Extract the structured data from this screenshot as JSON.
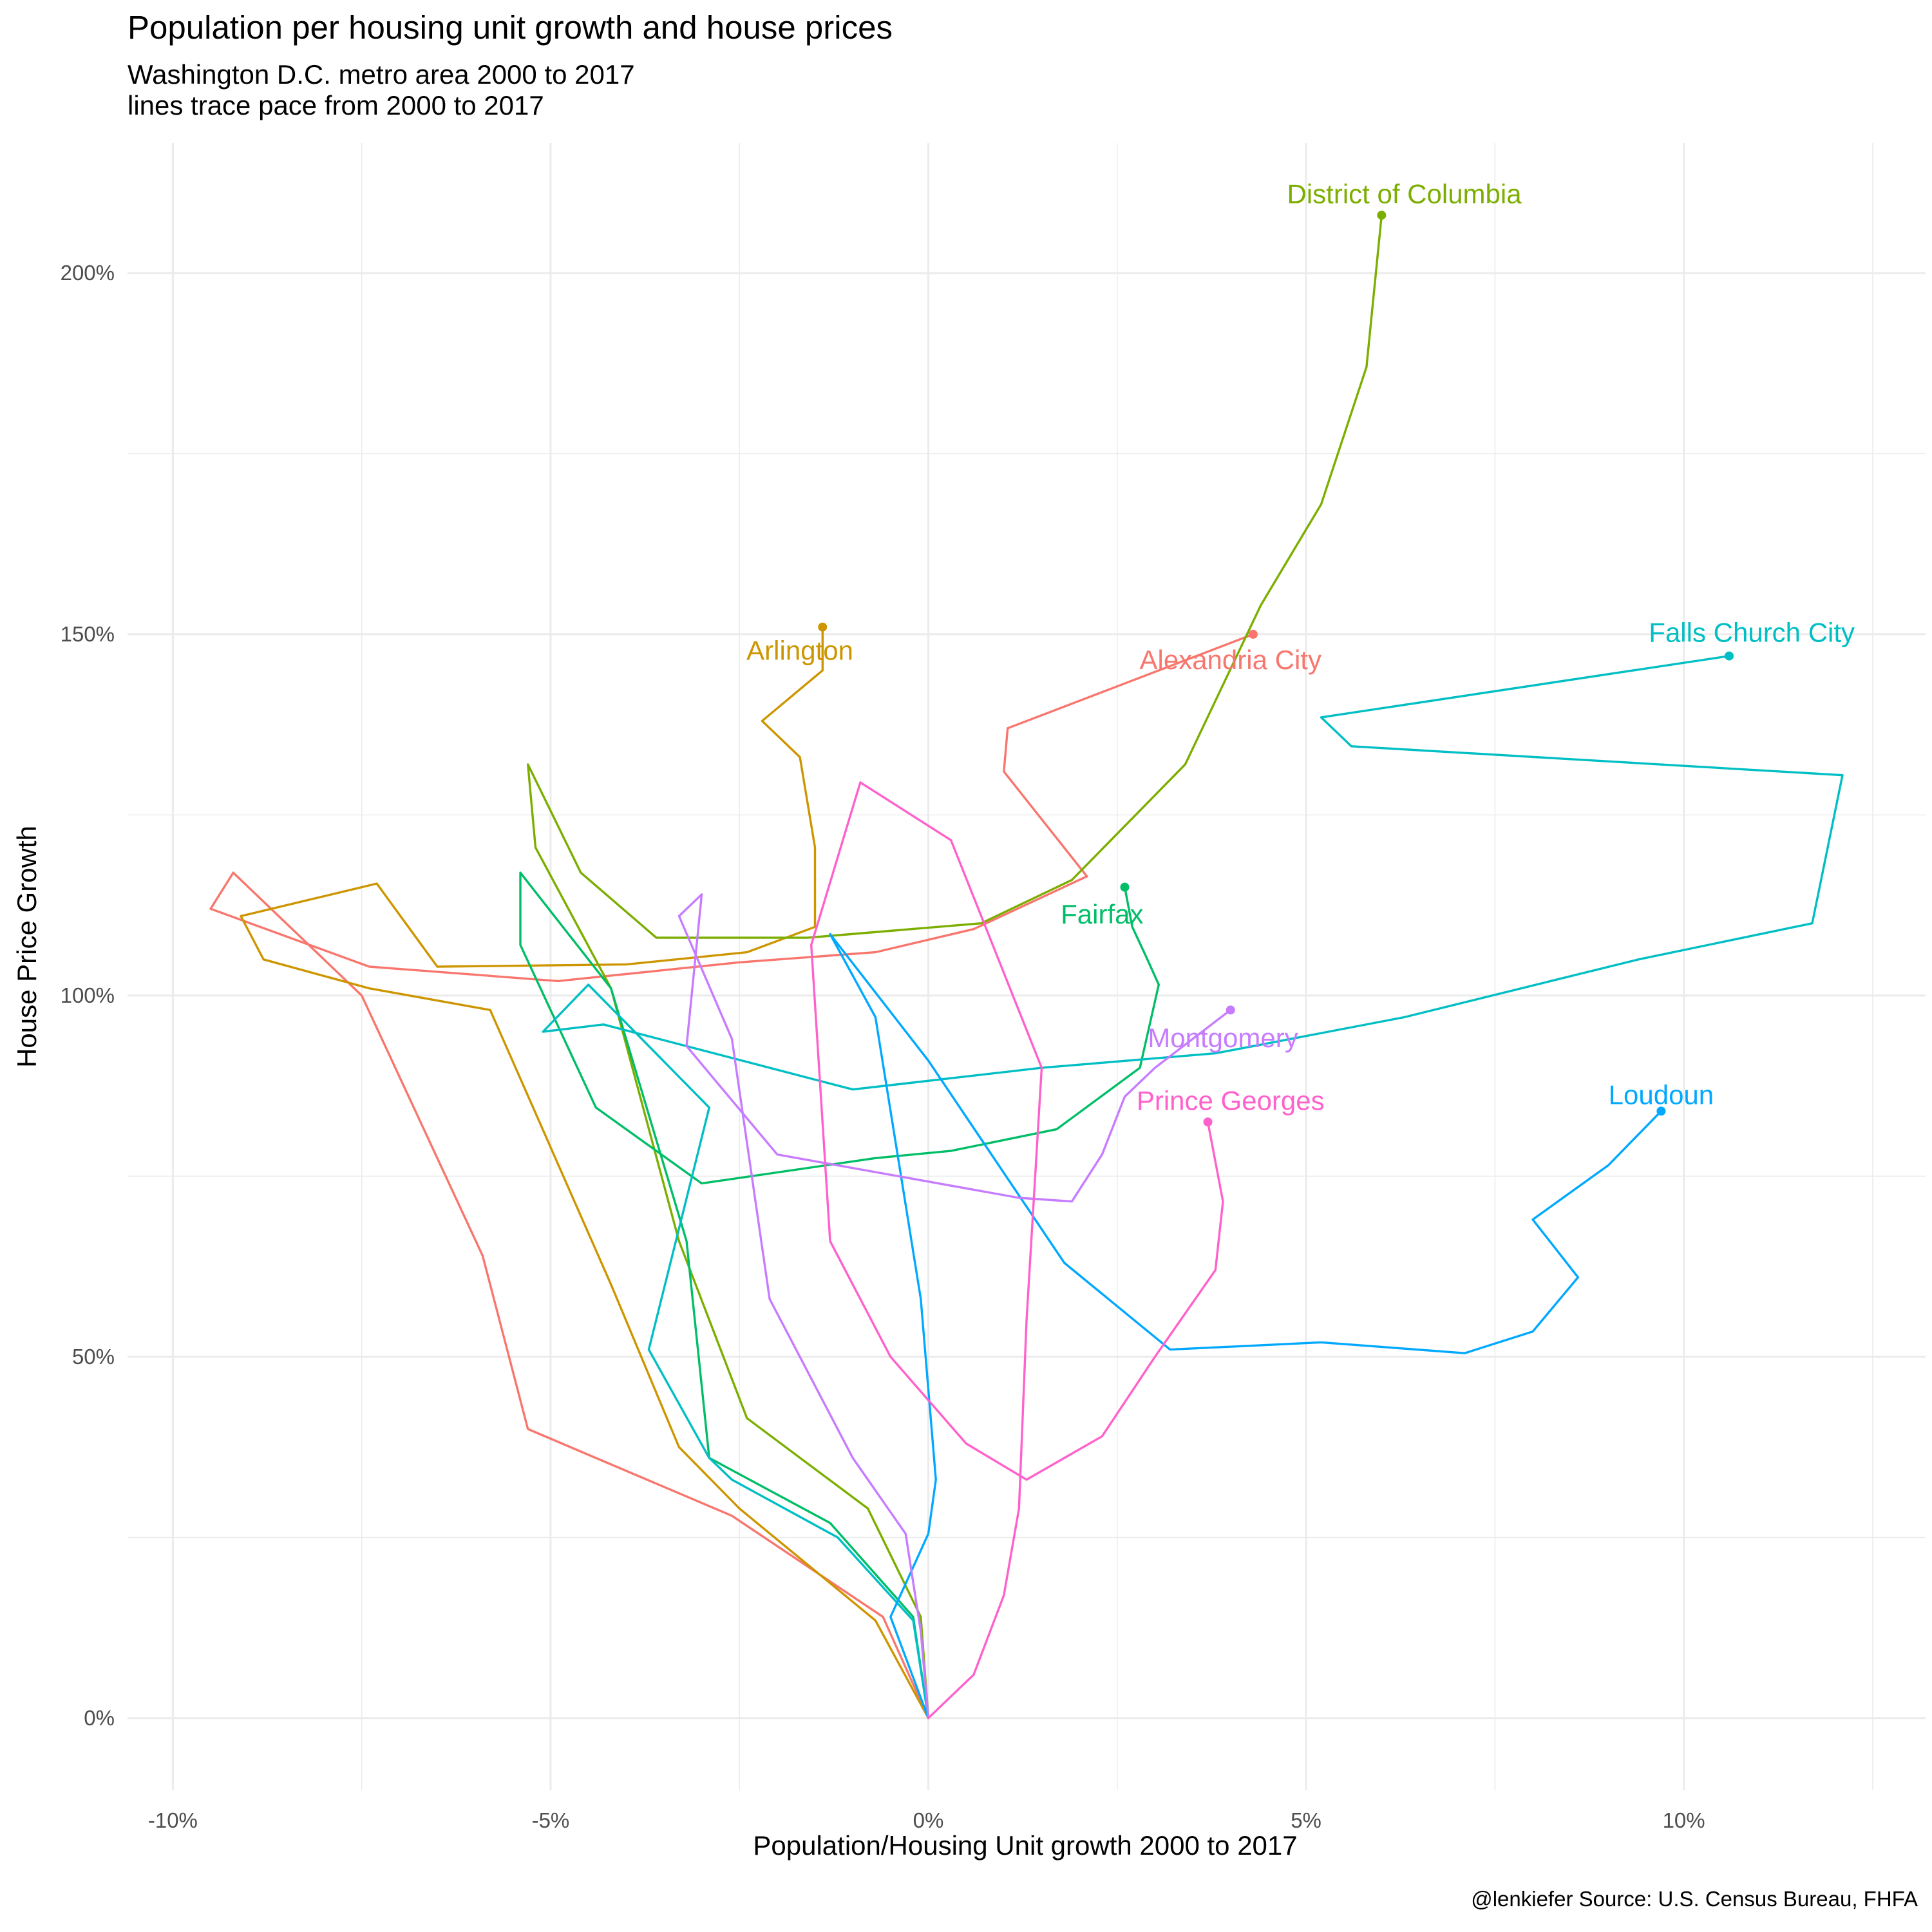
{
  "chart_data": {
    "type": "line",
    "title": "Population per housing unit growth and house prices",
    "subtitle_lines": [
      "Washington D.C. metro area 2000 to 2017",
      "lines trace pace from 2000 to 2017"
    ],
    "xlabel": "Population/Housing Unit growth 2000 to 2017",
    "ylabel": "House Price Growth",
    "caption": "@lenkiefer Source: U.S. Census Bureau, FHFA",
    "xlim": [
      -10.6,
      13.2
    ],
    "ylim": [
      -10,
      218
    ],
    "x_ticks": [
      -10,
      -5,
      0,
      5,
      10
    ],
    "x_tick_labels": [
      "-10%",
      "-5%",
      "0%",
      "5%",
      "10%"
    ],
    "y_ticks": [
      0,
      50,
      100,
      150,
      200
    ],
    "y_tick_labels": [
      "0%",
      "50%",
      "100%",
      "150%",
      "200%"
    ],
    "grid": true,
    "legend": "none",
    "series": [
      {
        "name": "Alexandria City",
        "color": "#F8766D",
        "points": [
          [
            0,
            0
          ],
          [
            -0.6,
            14
          ],
          [
            -2.6,
            28
          ],
          [
            -5.3,
            40
          ],
          [
            -5.9,
            64
          ],
          [
            -7.5,
            100
          ],
          [
            -9.2,
            117
          ],
          [
            -9.5,
            112
          ],
          [
            -7.4,
            104
          ],
          [
            -4.9,
            102
          ],
          [
            -2.5,
            104.6
          ],
          [
            -0.7,
            106
          ],
          [
            0.6,
            109.2
          ],
          [
            2.1,
            116.5
          ],
          [
            1.0,
            131
          ],
          [
            1.05,
            137
          ],
          [
            4.3,
            150
          ]
        ],
        "label_at": [
          4.0,
          146.5
        ]
      },
      {
        "name": "Arlington",
        "color": "#CD9600",
        "points": [
          [
            0,
            0
          ],
          [
            -0.7,
            13.5
          ],
          [
            -2.5,
            29
          ],
          [
            -3.3,
            37.5
          ],
          [
            -4.2,
            60
          ],
          [
            -5.8,
            98
          ],
          [
            -7.4,
            101
          ],
          [
            -8.8,
            105
          ],
          [
            -9.1,
            111
          ],
          [
            -7.3,
            115.5
          ],
          [
            -6.5,
            104
          ],
          [
            -4.0,
            104.3
          ],
          [
            -2.4,
            106
          ],
          [
            -1.5,
            109.5
          ],
          [
            -1.5,
            120.5
          ],
          [
            -1.7,
            133
          ],
          [
            -2.2,
            138
          ],
          [
            -1.4,
            145
          ],
          [
            -1.4,
            151
          ]
        ],
        "label_at": [
          -1.7,
          147.8
        ]
      },
      {
        "name": "District of Columbia",
        "color": "#7CAE00",
        "points": [
          [
            0,
            0
          ],
          [
            -0.1,
            14
          ],
          [
            -0.8,
            29
          ],
          [
            -2.4,
            41.5
          ],
          [
            -3.3,
            66
          ],
          [
            -4.2,
            101
          ],
          [
            -5.2,
            120.5
          ],
          [
            -5.3,
            132
          ],
          [
            -4.6,
            117
          ],
          [
            -3.6,
            108
          ],
          [
            -1.6,
            108
          ],
          [
            0.7,
            110
          ],
          [
            1.9,
            116
          ],
          [
            3.4,
            132
          ],
          [
            4.4,
            154
          ],
          [
            5.2,
            168
          ],
          [
            5.8,
            187
          ],
          [
            6.0,
            208
          ]
        ],
        "label_at": [
          6.3,
          211
        ]
      },
      {
        "name": "Fairfax",
        "color": "#00BE67",
        "points": [
          [
            0,
            0
          ],
          [
            -0.2,
            14
          ],
          [
            -1.3,
            27
          ],
          [
            -2.9,
            36
          ],
          [
            -3.2,
            66
          ],
          [
            -4.2,
            101
          ],
          [
            -5.4,
            117
          ],
          [
            -5.4,
            107
          ],
          [
            -4.4,
            84.5
          ],
          [
            -3.0,
            74
          ],
          [
            -0.7,
            77.5
          ],
          [
            0.3,
            78.5
          ],
          [
            1.7,
            81.5
          ],
          [
            2.8,
            90
          ],
          [
            3.05,
            101.5
          ],
          [
            2.9,
            105
          ],
          [
            2.7,
            109.5
          ],
          [
            2.6,
            115
          ]
        ],
        "label_at": [
          2.3,
          111.3
        ]
      },
      {
        "name": "Falls Church City",
        "color": "#00BFC4",
        "points": [
          [
            0,
            0
          ],
          [
            -0.2,
            13.5
          ],
          [
            -1.2,
            25
          ],
          [
            -2.6,
            33
          ],
          [
            -2.9,
            36
          ],
          [
            -3.7,
            51
          ],
          [
            -2.9,
            84.5
          ],
          [
            -4.5,
            101.5
          ],
          [
            -5.1,
            95
          ],
          [
            -4.3,
            96
          ],
          [
            -1.0,
            87
          ],
          [
            1.5,
            90
          ],
          [
            3.8,
            92
          ],
          [
            6.3,
            97
          ],
          [
            9.4,
            105
          ],
          [
            11.7,
            110
          ],
          [
            12.1,
            130.5
          ],
          [
            5.6,
            134.5
          ],
          [
            5.2,
            138.5
          ],
          [
            10.6,
            147
          ]
        ],
        "label_at": [
          10.9,
          150.3
        ]
      },
      {
        "name": "Loudoun",
        "color": "#00A9FF",
        "points": [
          [
            0,
            0
          ],
          [
            -0.5,
            14
          ],
          [
            0,
            25.5
          ],
          [
            0.1,
            33
          ],
          [
            -0.1,
            58
          ],
          [
            -0.7,
            97
          ],
          [
            -1.3,
            108.5
          ],
          [
            0,
            91
          ],
          [
            1.8,
            63
          ],
          [
            3.2,
            51
          ],
          [
            5.2,
            52
          ],
          [
            7.1,
            50.5
          ],
          [
            8.0,
            53.5
          ],
          [
            8.6,
            61
          ],
          [
            8.0,
            69
          ],
          [
            9.0,
            76.5
          ],
          [
            9.7,
            84
          ]
        ],
        "label_at": [
          9.7,
          86.3
        ]
      },
      {
        "name": "Montgomery",
        "color": "#C77CFF",
        "points": [
          [
            0,
            0
          ],
          [
            -0.1,
            12
          ],
          [
            -0.3,
            25.5
          ],
          [
            -1.0,
            36
          ],
          [
            -2.1,
            58
          ],
          [
            -2.6,
            94
          ],
          [
            -3.3,
            111
          ],
          [
            -3.0,
            114
          ],
          [
            -3.2,
            93
          ],
          [
            -2.0,
            78
          ],
          [
            1.2,
            72
          ],
          [
            1.9,
            71.5
          ],
          [
            2.3,
            78
          ],
          [
            2.6,
            86
          ],
          [
            3.0,
            90
          ],
          [
            4.0,
            98
          ]
        ],
        "label_at": [
          3.9,
          94.2
        ]
      },
      {
        "name": "Prince Georges",
        "color": "#FF61CC",
        "points": [
          [
            0,
            0
          ],
          [
            0.6,
            6
          ],
          [
            1.0,
            17
          ],
          [
            1.2,
            29
          ],
          [
            1.3,
            55
          ],
          [
            1.5,
            90
          ],
          [
            0.3,
            121.5
          ],
          [
            -0.9,
            129.5
          ],
          [
            -1.55,
            107
          ],
          [
            -1.3,
            66
          ],
          [
            -0.5,
            50
          ],
          [
            0.5,
            38
          ],
          [
            1.3,
            33
          ],
          [
            2.3,
            39
          ],
          [
            3.0,
            50
          ],
          [
            3.8,
            62
          ],
          [
            3.9,
            71.5
          ],
          [
            3.7,
            82.5
          ]
        ],
        "label_at": [
          4.0,
          85.5
        ]
      }
    ]
  }
}
